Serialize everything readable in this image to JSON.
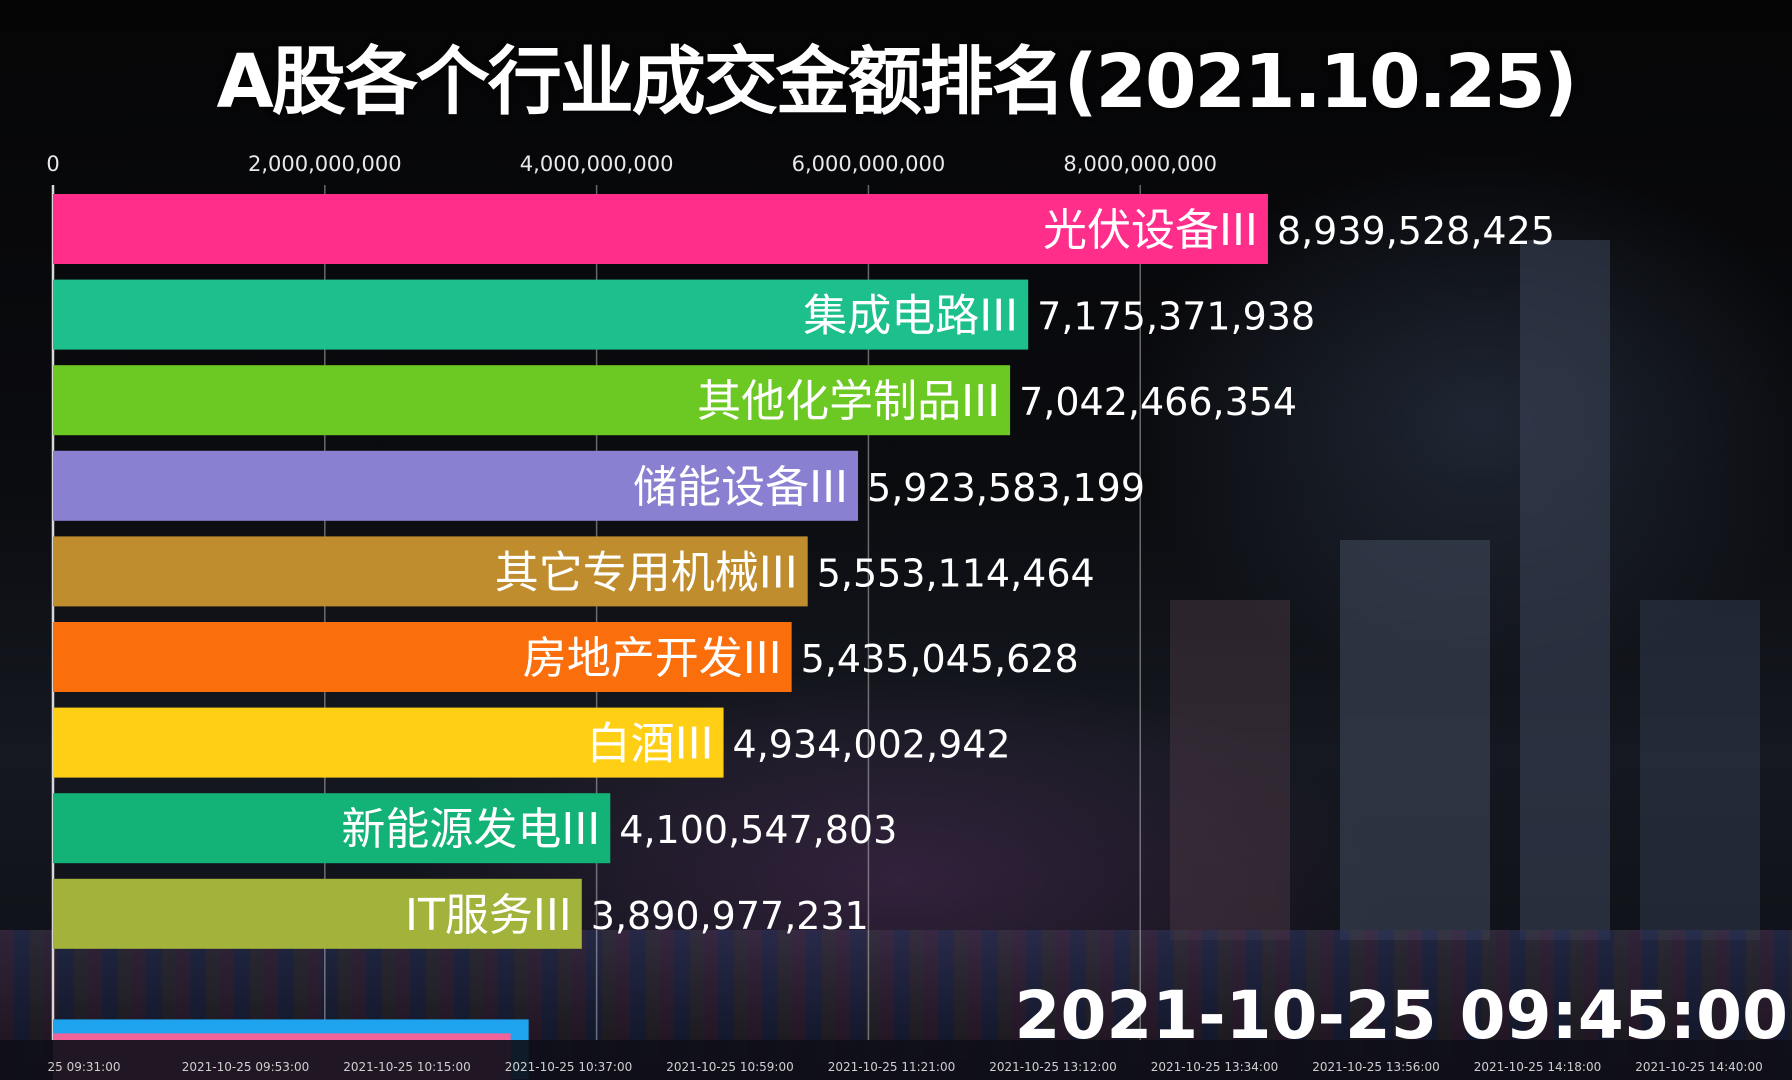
{
  "chart_data": {
    "type": "bar",
    "orientation": "horizontal",
    "title": "A股各个行业成交金额排名(2021.10.25)",
    "xlabel": "",
    "ylabel": "",
    "xlim": [
      0,
      10500000000
    ],
    "xticks": [
      0,
      2000000000,
      4000000000,
      6000000000,
      8000000000
    ],
    "xtick_labels": [
      "0",
      "2,000,000,000",
      "4,000,000,000",
      "6,000,000,000",
      "8,000,000,000"
    ],
    "grid": true,
    "categories": [
      "光伏设备III",
      "集成电路III",
      "其他化学制品III",
      "储能设备III",
      "其它专用机械III",
      "房地产开发III",
      "白酒III",
      "新能源发电III",
      "IT服务III"
    ],
    "values": [
      8939528425,
      7175371938,
      7042466354,
      5923583199,
      5553114464,
      5435045628,
      4934002942,
      4100547803,
      3890977231
    ],
    "value_labels": [
      "8,939,528,425",
      "7,175,371,938",
      "7,042,466,354",
      "5,923,583,199",
      "5,553,114,464",
      "5,435,045,628",
      "4,934,002,942",
      "4,100,547,803",
      "3,890,977,231"
    ],
    "colors": [
      "#ff2e8b",
      "#1dbf8c",
      "#6cc823",
      "#8a80d2",
      "#bf8d2e",
      "#fb6e0c",
      "#ffcf16",
      "#13b277",
      "#a3b23a"
    ],
    "partial_bar": {
      "value": 3500000000,
      "colors": [
        "#1ea3ef",
        "#f0629a"
      ]
    },
    "timestamp": "2021-10-25 09:45:00",
    "timeline_labels": [
      "25 09:31:00",
      "2021-10-25 09:53:00",
      "2021-10-25 10:15:00",
      "2021-10-25 10:37:00",
      "2021-10-25 10:59:00",
      "2021-10-25 11:21:00",
      "2021-10-25 13:12:00",
      "2021-10-25 13:34:00",
      "2021-10-25 13:56:00",
      "2021-10-25 14:18:00",
      "2021-10-25 14:40:00"
    ]
  }
}
